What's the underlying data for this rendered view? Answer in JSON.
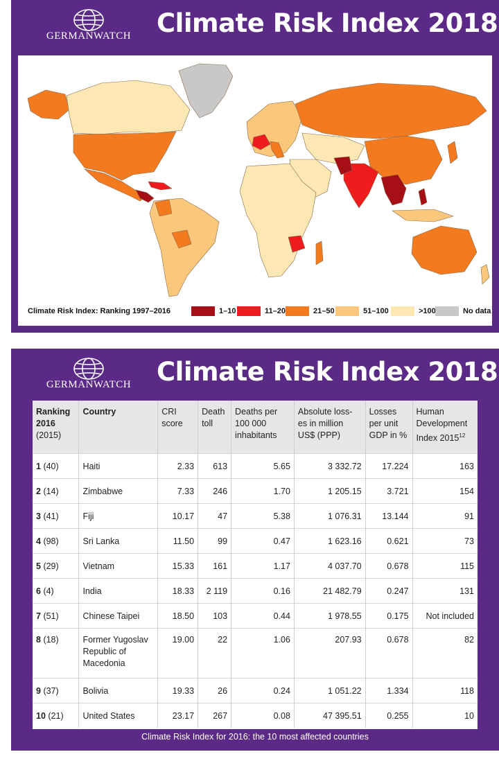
{
  "top_panel": {
    "logo_text": "GERMANWATCH",
    "title": "Climate Risk Index 2018",
    "legend": {
      "title": "Climate Risk Index: Ranking 1997–2016",
      "items": [
        {
          "label": "1–10",
          "color": "#a50f15"
        },
        {
          "label": "11–20",
          "color": "#ee1c1c"
        },
        {
          "label": "21–50",
          "color": "#f47a1f"
        },
        {
          "label": "51–100",
          "color": "#fbc77a"
        },
        {
          "label": ">100",
          "color": "#fde8b3"
        },
        {
          "label": "No data",
          "color": "#c8c8c8"
        }
      ]
    }
  },
  "bottom_panel": {
    "logo_text": "GERMANWATCH",
    "title": "Climate Risk Index 2018",
    "caption": "Climate Risk Index for 2016: the 10 most affected countries",
    "columns": {
      "ranking": [
        "Ranking",
        "2016",
        "(2015)"
      ],
      "country": [
        "Country"
      ],
      "cri": [
        "CRI",
        "score"
      ],
      "deaths": [
        "Death",
        "toll"
      ],
      "per100k": [
        "Deaths per",
        "100 000",
        "inhabitants"
      ],
      "losses": [
        "Absolute loss-",
        "es in million",
        "US$ (PPP)"
      ],
      "gdp": [
        "Losses",
        "per unit",
        "GDP in %"
      ],
      "hdi": [
        "Human",
        "Development",
        "Index 2015"
      ],
      "hdi_sup": "12"
    },
    "rows": [
      {
        "rank": "1",
        "prev": "(40)",
        "country": "Haiti",
        "cri": "2.33",
        "deaths": "613",
        "per100k": "5.65",
        "losses": "3 332.72",
        "gdp": "17.224",
        "hdi": "163"
      },
      {
        "rank": "2",
        "prev": "(14)",
        "country": "Zimbabwe",
        "cri": "7.33",
        "deaths": "246",
        "per100k": "1.70",
        "losses": "1 205.15",
        "gdp": "3.721",
        "hdi": "154"
      },
      {
        "rank": "3",
        "prev": "(41)",
        "country": "Fiji",
        "cri": "10.17",
        "deaths": "47",
        "per100k": "5.38",
        "losses": "1 076.31",
        "gdp": "13.144",
        "hdi": "91"
      },
      {
        "rank": "4",
        "prev": "(98)",
        "country": "Sri Lanka",
        "cri": "11.50",
        "deaths": "99",
        "per100k": "0.47",
        "losses": "1 623.16",
        "gdp": "0.621",
        "hdi": "73"
      },
      {
        "rank": "5",
        "prev": "(29)",
        "country": "Vietnam",
        "cri": "15.33",
        "deaths": "161",
        "per100k": "1.17",
        "losses": "4 037.70",
        "gdp": "0.678",
        "hdi": "115"
      },
      {
        "rank": "6",
        "prev": "(4)",
        "country": "India",
        "cri": "18.33",
        "deaths": "2 119",
        "per100k": "0.16",
        "losses": "21 482.79",
        "gdp": "0.247",
        "hdi": "131"
      },
      {
        "rank": "7",
        "prev": "(51)",
        "country": "Chinese Taipei",
        "cri": "18.50",
        "deaths": "103",
        "per100k": "0.44",
        "losses": "1 978.55",
        "gdp": "0.175",
        "hdi": "Not included"
      },
      {
        "rank": "8",
        "prev": "(18)",
        "country": "Former Yugoslav Republic of Macedonia",
        "cri": "19.00",
        "deaths": "22",
        "per100k": "1.06",
        "losses": "207.93",
        "gdp": "0.678",
        "hdi": "82"
      },
      {
        "rank": "9",
        "prev": "(37)",
        "country": "Bolivia",
        "cri": "19.33",
        "deaths": "26",
        "per100k": "0.24",
        "losses": "1 051.22",
        "gdp": "1.334",
        "hdi": "118"
      },
      {
        "rank": "10",
        "prev": "(21)",
        "country": "United States",
        "cri": "23.17",
        "deaths": "267",
        "per100k": "0.08",
        "losses": "47 395.51",
        "gdp": "0.255",
        "hdi": "10"
      }
    ]
  }
}
